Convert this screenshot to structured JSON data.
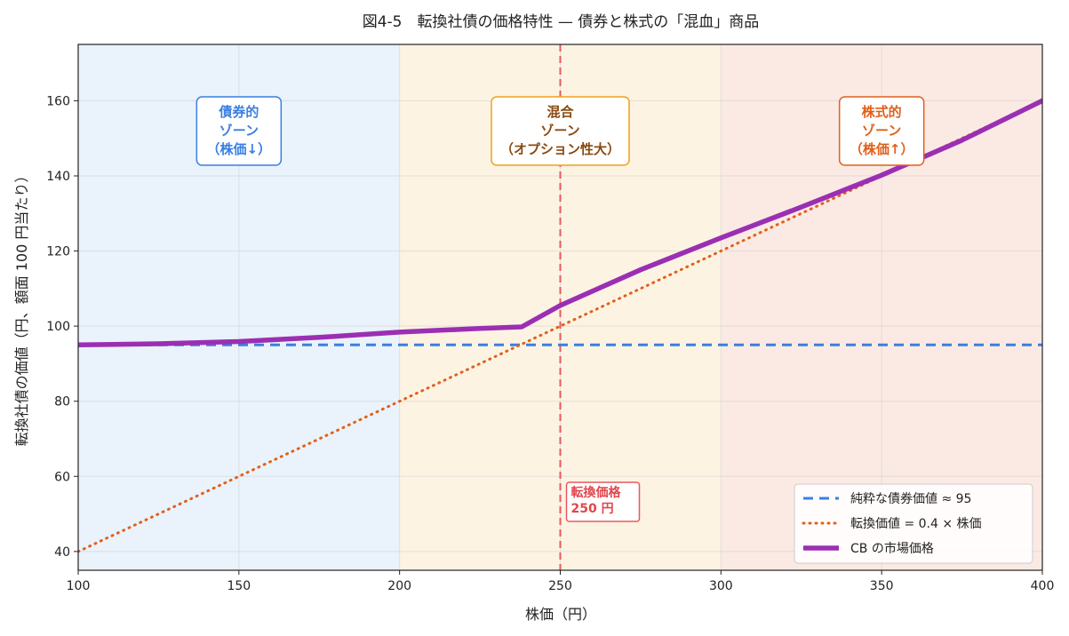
{
  "chart_data": {
    "type": "line",
    "title": "図4-5　転換社債の価格特性 — 債券と株式の「混血」商品",
    "xlabel": "株価（円）",
    "ylabel": "転換社債の価値（円、額面 100 円当たり）",
    "xlim": [
      100,
      400
    ],
    "ylim": [
      35,
      175
    ],
    "xticks": [
      100,
      150,
      200,
      250,
      300,
      350,
      400
    ],
    "yticks": [
      40,
      60,
      80,
      100,
      120,
      140,
      160
    ],
    "grid": true,
    "legend_position": "lower-right",
    "series": [
      {
        "name": "純粋な債券価値 ≈ 95",
        "style": "dashed",
        "color": "#3b7fe0",
        "x": [
          100,
          400
        ],
        "y": [
          95,
          95
        ]
      },
      {
        "name": "転換価値 = 0.4 × 株価",
        "style": "dotted",
        "color": "#e0601a",
        "x": [
          100,
          400
        ],
        "y": [
          40,
          160
        ]
      },
      {
        "name": "CB の市場価格",
        "style": "solid",
        "color": "#9b2fb3",
        "x": [
          100,
          125,
          150,
          175,
          200,
          225,
          238,
          250,
          275,
          300,
          325,
          350,
          375,
          400
        ],
        "y": [
          95.0,
          95.3,
          95.9,
          97.0,
          98.4,
          99.4,
          99.8,
          105.5,
          115.0,
          123.5,
          131.7,
          140.2,
          149.5,
          160.0
        ]
      }
    ],
    "zones": [
      {
        "x_from": 100,
        "x_to": 200,
        "color": "#eaf2fb",
        "label": [
          "債券的",
          "ゾーン",
          "（株価↓）"
        ],
        "label_x": 150,
        "text_color": "#3b7fe0",
        "border_color": "#3b7fe0"
      },
      {
        "x_from": 200,
        "x_to": 300,
        "color": "#fdf3e3",
        "label": [
          "混合",
          "ゾーン",
          "（オプション性大）"
        ],
        "label_x": 250,
        "text_color": "#8a4a12",
        "border_color": "#f0a21a"
      },
      {
        "x_from": 300,
        "x_to": 400,
        "color": "#fbeae3",
        "label": [
          "株式的",
          "ゾーン",
          "（株価↑）"
        ],
        "label_x": 350,
        "text_color": "#e0601a",
        "border_color": "#e0601a"
      }
    ],
    "conversion_line": {
      "x": 250,
      "color": "#e8595c",
      "label": [
        "転換価格",
        "250 円"
      ]
    }
  }
}
